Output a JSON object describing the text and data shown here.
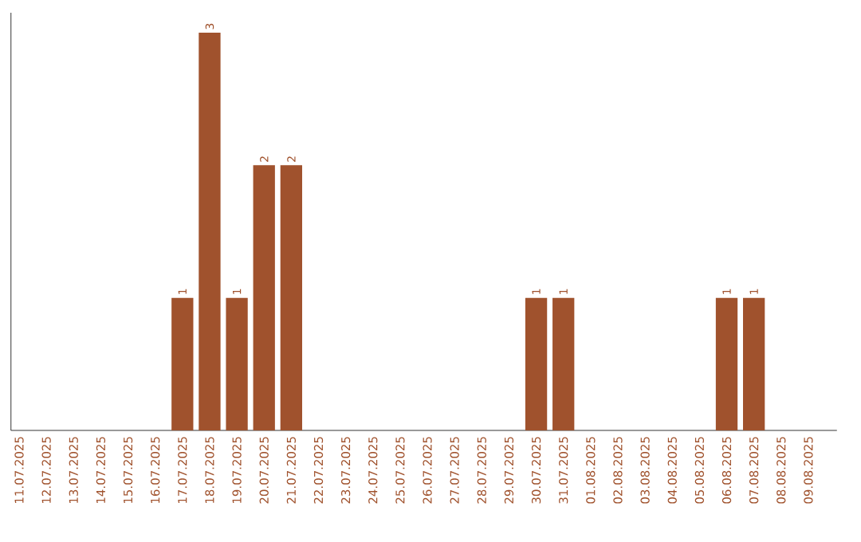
{
  "chart_data": {
    "type": "bar",
    "categories": [
      "11.07.2025",
      "12.07.2025",
      "13.07.2025",
      "14.07.2025",
      "15.07.2025",
      "16.07.2025",
      "17.07.2025",
      "18.07.2025",
      "19.07.2025",
      "20.07.2025",
      "21.07.2025",
      "22.07.2025",
      "23.07.2025",
      "24.07.2025",
      "25.07.2025",
      "26.07.2025",
      "27.07.2025",
      "28.07.2025",
      "29.07.2025",
      "30.07.2025",
      "31.07.2025",
      "01.08.2025",
      "02.08.2025",
      "03.08.2025",
      "04.08.2025",
      "05.08.2025",
      "06.08.2025",
      "07.08.2025",
      "08.08.2025",
      "09.08.2025"
    ],
    "values": [
      0,
      0,
      0,
      0,
      0,
      0,
      1,
      3,
      1,
      2,
      2,
      0,
      0,
      0,
      0,
      0,
      0,
      0,
      0,
      1,
      1,
      0,
      0,
      0,
      0,
      0,
      1,
      1,
      0,
      0
    ],
    "value_labels": [
      null,
      null,
      null,
      null,
      null,
      null,
      "1",
      "3",
      "1",
      "2",
      "2",
      null,
      null,
      null,
      null,
      null,
      null,
      null,
      null,
      "1",
      "1",
      null,
      null,
      null,
      null,
      null,
      "1",
      "1",
      null,
      null
    ],
    "color": "#a0522d",
    "ylim": [
      0,
      3.15
    ],
    "tick_labels": "x"
  }
}
